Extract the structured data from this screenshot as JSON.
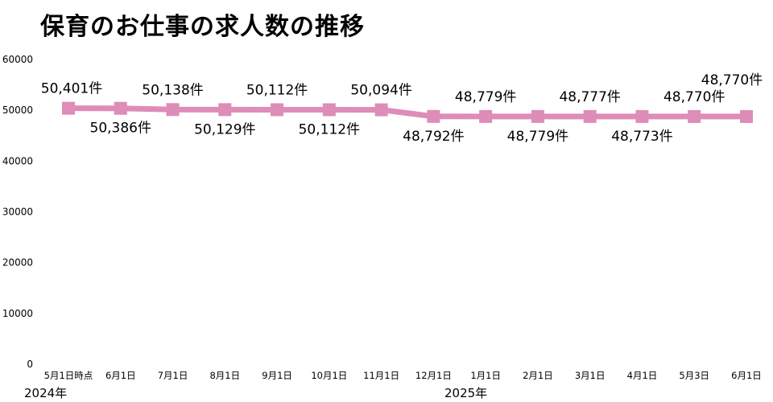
{
  "chart_data": {
    "type": "line",
    "title": "保育のお仕事の求人数の推移",
    "categories": [
      "5月1日時点",
      "6月1日",
      "7月1日",
      "8月1日",
      "9月1日",
      "10月1日",
      "11月1日",
      "12月1日",
      "1月1日",
      "2月1日",
      "3月1日",
      "4月1日",
      "5月3日",
      "6月1日"
    ],
    "year_labels": [
      "2024年",
      "2025年"
    ],
    "series": [
      {
        "values": [
          50401,
          50386,
          50138,
          50129,
          50112,
          50112,
          50094,
          48792,
          48779,
          48779,
          48777,
          48773,
          48770,
          48770
        ],
        "data_labels": [
          "50,401件",
          "50,386件",
          "50,138件",
          "50,129件",
          "50,112件",
          "50,112件",
          "50,094件",
          "48,792件",
          "48,779件",
          "48,779件",
          "48,777件",
          "48,773件",
          "48,770件",
          "48,770件"
        ],
        "label_position": [
          "above",
          "below",
          "above",
          "below",
          "above",
          "below",
          "above",
          "below",
          "above",
          "below",
          "above",
          "below",
          "above",
          "above"
        ]
      }
    ],
    "yticks": [
      0,
      10000,
      20000,
      30000,
      40000,
      50000,
      60000
    ],
    "ylim": [
      0,
      60000
    ],
    "grid": false,
    "legend": "none",
    "line_color": "#de8cb8"
  }
}
